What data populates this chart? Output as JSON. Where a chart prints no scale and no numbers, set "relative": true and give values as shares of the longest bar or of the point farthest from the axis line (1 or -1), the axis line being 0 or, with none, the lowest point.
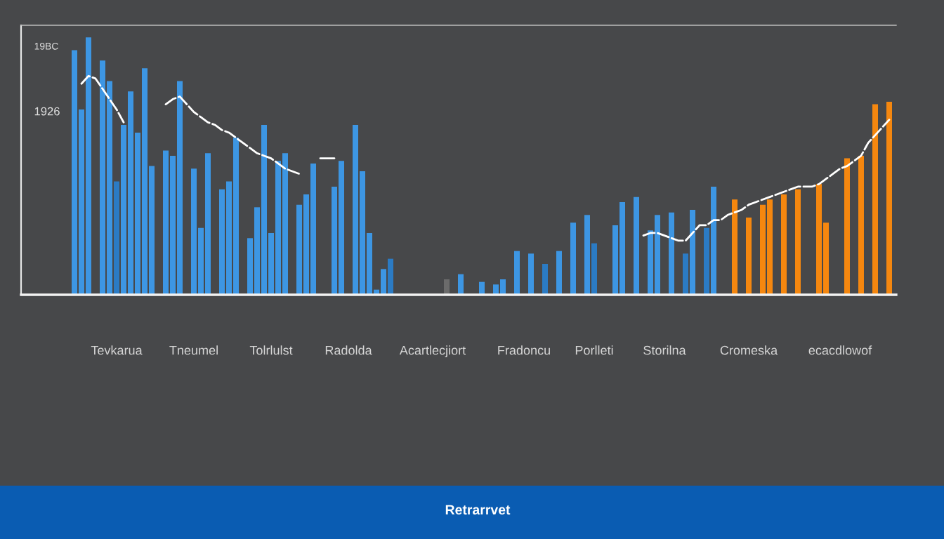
{
  "chart_data": {
    "type": "bar",
    "relative": true,
    "categories": [
      null,
      null,
      null,
      null,
      null,
      null,
      "Tevkarua",
      null,
      null,
      null,
      null,
      null,
      null,
      null,
      null,
      null,
      null,
      "Tneumel",
      null,
      null,
      null,
      null,
      null,
      null,
      null,
      null,
      null,
      null,
      "Tolrlulst",
      null,
      null,
      null,
      null,
      null,
      null,
      null,
      null,
      null,
      null,
      "Radolda",
      null,
      null,
      null,
      null,
      null,
      null,
      null,
      null,
      null,
      null,
      null,
      "Acartlecjiort",
      null,
      null,
      null,
      null,
      null,
      null,
      null,
      null,
      null,
      null,
      null,
      null,
      "Fradoncu",
      null,
      null,
      null,
      null,
      null,
      null,
      null,
      null,
      null,
      "Porlleti",
      null,
      null,
      null,
      null,
      null,
      null,
      null,
      null,
      null,
      "Storilna",
      null,
      null,
      null,
      null,
      null,
      null,
      null,
      null,
      null,
      null,
      null,
      "Cromeska",
      null,
      null,
      null,
      null,
      null,
      null,
      null,
      null,
      null,
      null,
      null,
      null,
      "ecacdlowof",
      null,
      null,
      null,
      null,
      null,
      null,
      null
    ],
    "series": [
      {
        "values": [
          0.95,
          0.72,
          1.0,
          null,
          0.91,
          0.83,
          0.44,
          0.66,
          0.79,
          0.63,
          0.88,
          0.5,
          null,
          0.56,
          0.54,
          0.83,
          null,
          0.49,
          0.26,
          0.55,
          null,
          0.41,
          0.44,
          0.61,
          null,
          0.22,
          0.34,
          0.66,
          0.24,
          0.52,
          0.55,
          null,
          0.35,
          0.39,
          0.51,
          null,
          null,
          0.42,
          0.52,
          null,
          0.66,
          0.48,
          0.24,
          0.02,
          0.1,
          0.14,
          null,
          null,
          null,
          null,
          null,
          null,
          null,
          0.06,
          null,
          0.08,
          null,
          null,
          0.05,
          null,
          0.04,
          0.06,
          null,
          0.17,
          null,
          0.16,
          null,
          0.12,
          null,
          0.17,
          null,
          0.28,
          null,
          0.31,
          0.2,
          null,
          null,
          0.27,
          0.36,
          null,
          0.38,
          null,
          0.25,
          0.31,
          null,
          0.32,
          null,
          0.16,
          0.33,
          null,
          0.26,
          0.42,
          null,
          null,
          0.37,
          null,
          0.3,
          null,
          0.35,
          0.37,
          null,
          0.39,
          null,
          0.41,
          null,
          null,
          0.43,
          0.28,
          null,
          null,
          0.53,
          null,
          0.54,
          null,
          0.74,
          null,
          0.75
        ],
        "colors": [
          "#3d96e3",
          "#3d96e3",
          "#3d96e3",
          null,
          "#3d96e3",
          "#3d96e3",
          "#2b7bc4",
          "#3d96e3",
          "#3d96e3",
          "#3d96e3",
          "#3d96e3",
          "#3d96e3",
          null,
          "#3d96e3",
          "#3d96e3",
          "#3d96e3",
          null,
          "#3d96e3",
          "#3d96e3",
          "#3d96e3",
          null,
          "#3d96e3",
          "#3d96e3",
          "#3d96e3",
          null,
          "#3d96e3",
          "#3d96e3",
          "#3d96e3",
          "#3d96e3",
          "#3d96e3",
          "#3d96e3",
          null,
          "#3d96e3",
          "#3d96e3",
          "#3d96e3",
          null,
          null,
          "#3d96e3",
          "#3d96e3",
          null,
          "#3d96e3",
          "#3d96e3",
          "#3d96e3",
          "#3d96e3",
          "#3d96e3",
          "#2b7bc4",
          null,
          null,
          null,
          null,
          null,
          null,
          null,
          "#6b6b6b",
          null,
          "#3d96e3",
          null,
          null,
          "#3d96e3",
          null,
          "#3d96e3",
          "#3d96e3",
          null,
          "#3d96e3",
          null,
          "#3d96e3",
          null,
          "#2b7bc4",
          null,
          "#3d96e3",
          null,
          "#3d96e3",
          null,
          "#3d96e3",
          "#2b7bc4",
          null,
          null,
          "#3d96e3",
          "#3d96e3",
          null,
          "#3d96e3",
          null,
          "#3d96e3",
          "#3d96e3",
          null,
          "#3d96e3",
          null,
          "#2b7bc4",
          "#3d96e3",
          null,
          "#2b7bc4",
          "#3d96e3",
          null,
          null,
          "#f5870f",
          null,
          "#f5870f",
          null,
          "#f5870f",
          "#f5870f",
          null,
          "#f5870f",
          null,
          "#f5870f",
          null,
          null,
          "#f5870f",
          "#f5870f",
          null,
          null,
          "#f5870f",
          null,
          "#f5870f",
          null,
          "#f5870f",
          null,
          "#f5870f"
        ]
      },
      {
        "type": "line",
        "color": "#ffffff",
        "line_style": "dashed",
        "values": [
          null,
          0.82,
          0.85,
          0.84,
          0.8,
          0.76,
          0.72,
          0.67,
          null,
          null,
          null,
          null,
          null,
          0.74,
          0.76,
          0.77,
          0.74,
          0.71,
          0.69,
          0.67,
          0.66,
          0.64,
          0.63,
          0.61,
          0.59,
          0.57,
          0.55,
          0.54,
          0.53,
          0.51,
          0.49,
          0.48,
          0.47,
          null,
          null,
          null,
          null,
          null,
          null,
          null,
          null,
          null,
          null,
          null,
          null,
          null,
          null,
          null,
          null,
          null,
          null,
          null,
          null,
          null,
          null,
          null,
          null,
          null,
          null,
          null,
          null,
          null,
          null,
          null,
          null,
          null,
          null,
          null,
          null,
          null,
          null,
          null,
          null,
          null,
          null,
          null,
          null,
          null,
          null,
          null,
          null,
          0.23,
          0.24,
          0.24,
          0.23,
          0.22,
          0.21,
          0.21,
          0.24,
          0.27,
          0.27,
          0.29,
          0.29,
          0.31,
          0.32,
          0.33,
          0.35,
          0.36,
          0.37,
          0.38,
          0.39,
          0.4,
          0.41,
          0.42,
          0.42,
          0.42,
          0.43,
          0.45,
          0.47,
          0.49,
          0.5,
          0.52,
          0.54,
          0.59,
          0.62,
          0.65,
          0.68
        ]
      },
      {
        "type": "line",
        "color": "#ffffff",
        "line_style": "solid",
        "values": [
          null,
          null,
          null,
          null,
          null,
          null,
          null,
          null,
          null,
          null,
          null,
          null,
          null,
          null,
          null,
          null,
          null,
          null,
          null,
          null,
          null,
          null,
          null,
          null,
          null,
          null,
          null,
          null,
          null,
          null,
          null,
          null,
          null,
          null,
          null,
          0.53,
          0.53,
          0.53,
          null,
          null,
          null,
          null,
          null,
          null,
          null,
          null,
          null,
          null,
          null,
          null,
          null,
          null,
          null,
          null,
          null,
          null,
          null,
          null,
          null,
          null,
          null,
          null,
          null,
          null,
          null,
          null,
          null,
          null,
          null,
          null,
          null,
          null,
          null,
          null,
          null,
          null,
          null,
          null,
          null,
          null,
          null,
          null,
          null,
          null,
          null,
          null,
          null,
          null,
          null,
          null,
          null,
          null,
          null,
          null,
          null,
          null,
          null,
          null,
          null,
          null,
          null,
          null,
          null,
          null,
          null,
          null,
          null,
          null,
          null,
          null,
          null,
          null,
          null,
          null,
          null,
          null,
          null
        ]
      }
    ],
    "annotations": [
      "19BC",
      "1926",
      "Retrarrvet"
    ]
  }
}
